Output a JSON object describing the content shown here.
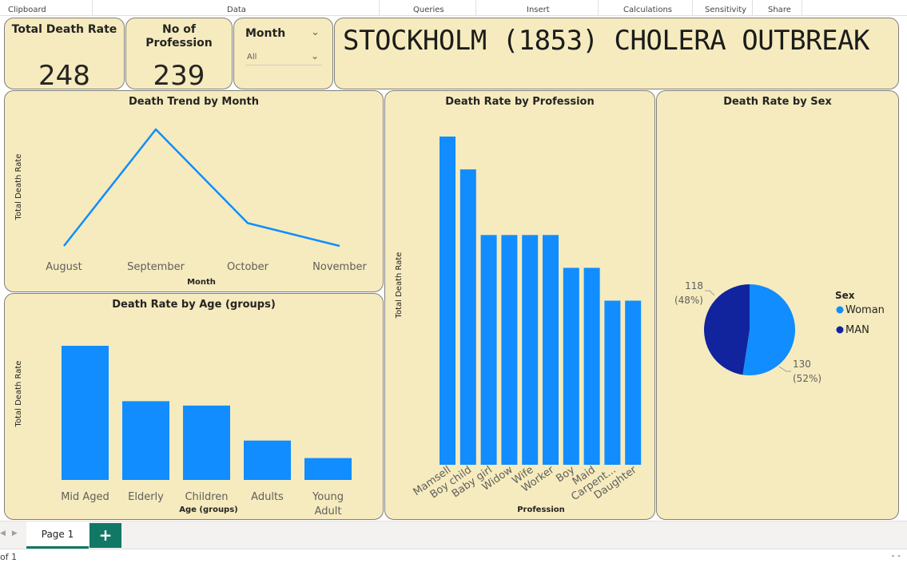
{
  "ribbon": {
    "groups": [
      "Clipboard",
      "Data",
      "Queries",
      "Insert",
      "Calculations",
      "Sensitivity",
      "Share"
    ]
  },
  "kpis": {
    "total_death_rate": {
      "title": "Total Death Rate",
      "value": "248"
    },
    "no_of_profession": {
      "title": "No of Profession",
      "value": "239"
    }
  },
  "slicer": {
    "title": "Month",
    "value": "All"
  },
  "banner": {
    "text": "STOCKHOLM (1853) CHOLERA OUTBREAK"
  },
  "colors": {
    "accent": "#118dff",
    "dark": "#12239e",
    "card": "#f5ebbe",
    "tab": "#117865"
  },
  "charts": {
    "trend": {
      "title": "Death Trend by Month",
      "xlabel": "Month",
      "ylabel": "Total Death Rate"
    },
    "profession": {
      "title": "Death Rate by Profession",
      "xlabel": "Profession",
      "ylabel": "Total Death Rate"
    },
    "sex": {
      "title": "Death Rate by Sex",
      "legend_title": "Sex"
    },
    "age": {
      "title": "Death Rate by Age (groups)",
      "xlabel": "Age (groups)",
      "ylabel": "Total Death Rate"
    }
  },
  "chart_data": [
    {
      "type": "line",
      "title": "Death Trend by Month",
      "xlabel": "Month",
      "ylabel": "Total Death Rate",
      "categories": [
        "August",
        "September",
        "October",
        "November"
      ],
      "values": [
        2,
        150,
        31,
        2
      ],
      "ylim": [
        0,
        150
      ]
    },
    {
      "type": "bar",
      "title": "Death Rate by Profession",
      "xlabel": "Profession",
      "ylabel": "Total Death Rate",
      "categories": [
        "Mamsell",
        "Boy child",
        "Baby girl",
        "Widow",
        "Wife",
        "Worker",
        "Boy",
        "Maid",
        "Carpent...",
        "Daughter"
      ],
      "values": [
        10,
        9,
        7,
        7,
        7,
        7,
        6,
        6,
        5,
        5
      ],
      "ylim": [
        0,
        10
      ]
    },
    {
      "type": "pie",
      "title": "Death Rate by Sex",
      "legend_title": "Sex",
      "categories": [
        "Woman",
        "MAN"
      ],
      "values": [
        130,
        118
      ],
      "labels": [
        "130",
        "118"
      ],
      "percent_labels": [
        "(52%)",
        "(48%)"
      ],
      "legend": "right"
    },
    {
      "type": "bar",
      "title": "Death Rate by Age (groups)",
      "xlabel": "Age (groups)",
      "ylabel": "Total Death Rate",
      "categories": [
        "Mid Aged",
        "Elderly",
        "Children",
        "Adults",
        "Young Adult"
      ],
      "values": [
        92,
        54,
        51,
        27,
        15
      ],
      "ylim": [
        0,
        92
      ]
    }
  ],
  "tabs": {
    "page": "Page 1",
    "add": "+"
  },
  "status": {
    "page_info": "of 1",
    "zoom_hint": "- -"
  }
}
